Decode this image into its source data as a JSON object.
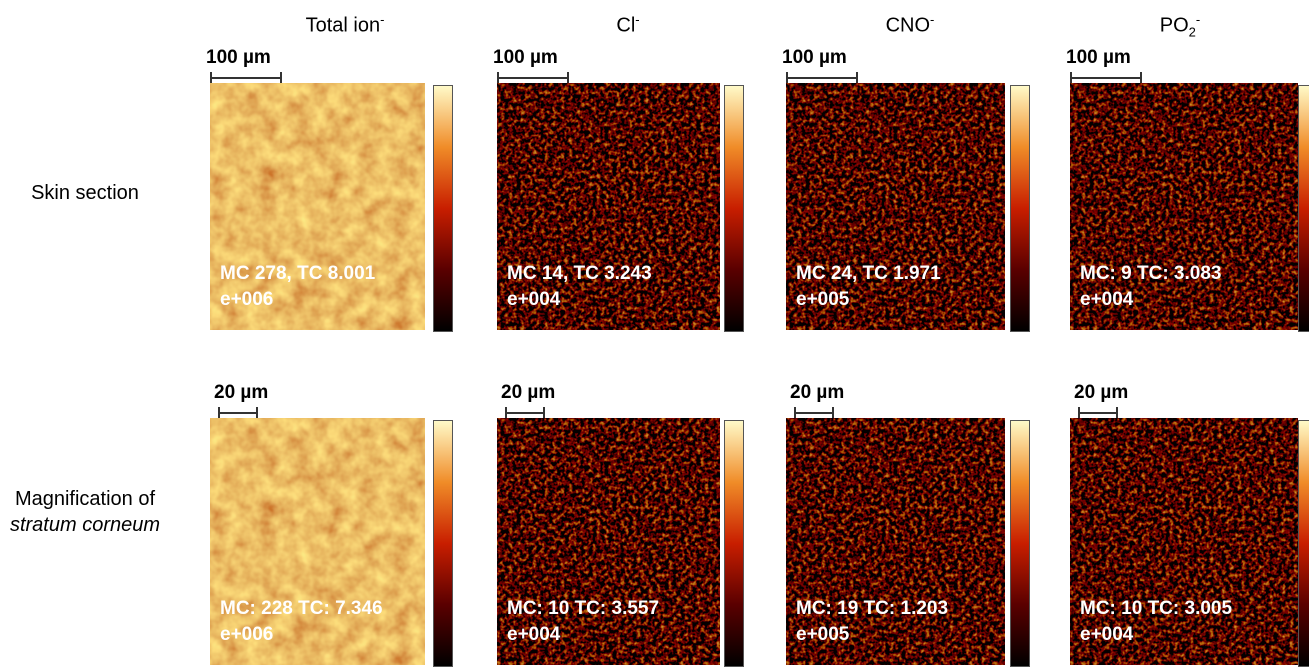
{
  "columns": [
    {
      "label": "Total ion",
      "sup": "-"
    },
    {
      "label": "Cl",
      "sup": "-"
    },
    {
      "label": "CNO",
      "sup": "-"
    },
    {
      "label": "PO",
      "sub": "2",
      "sup": "-"
    }
  ],
  "rows": [
    {
      "label": "Skin section",
      "scale_bar": "100 µm",
      "panels": [
        {
          "line1": "MC 278, TC 8.001",
          "line2": "e+006"
        },
        {
          "line1": "MC 14, TC 3.243",
          "line2": "e+004"
        },
        {
          "line1": "MC 24, TC 1.971",
          "line2": "e+005"
        },
        {
          "line1": "MC: 9 TC: 3.083",
          "line2": "e+004"
        }
      ]
    },
    {
      "label": "Magnification of",
      "label_italic": "stratum corneum",
      "scale_bar": "20 µm",
      "panels": [
        {
          "line1": "MC: 228 TC: 7.346",
          "line2": "e+006"
        },
        {
          "line1": "MC: 10 TC: 3.557",
          "line2": "e+004"
        },
        {
          "line1": "MC: 19 TC: 1.203",
          "line2": "e+005"
        },
        {
          "line1": "MC: 10 TC: 3.005",
          "line2": "e+004"
        }
      ]
    }
  ]
}
